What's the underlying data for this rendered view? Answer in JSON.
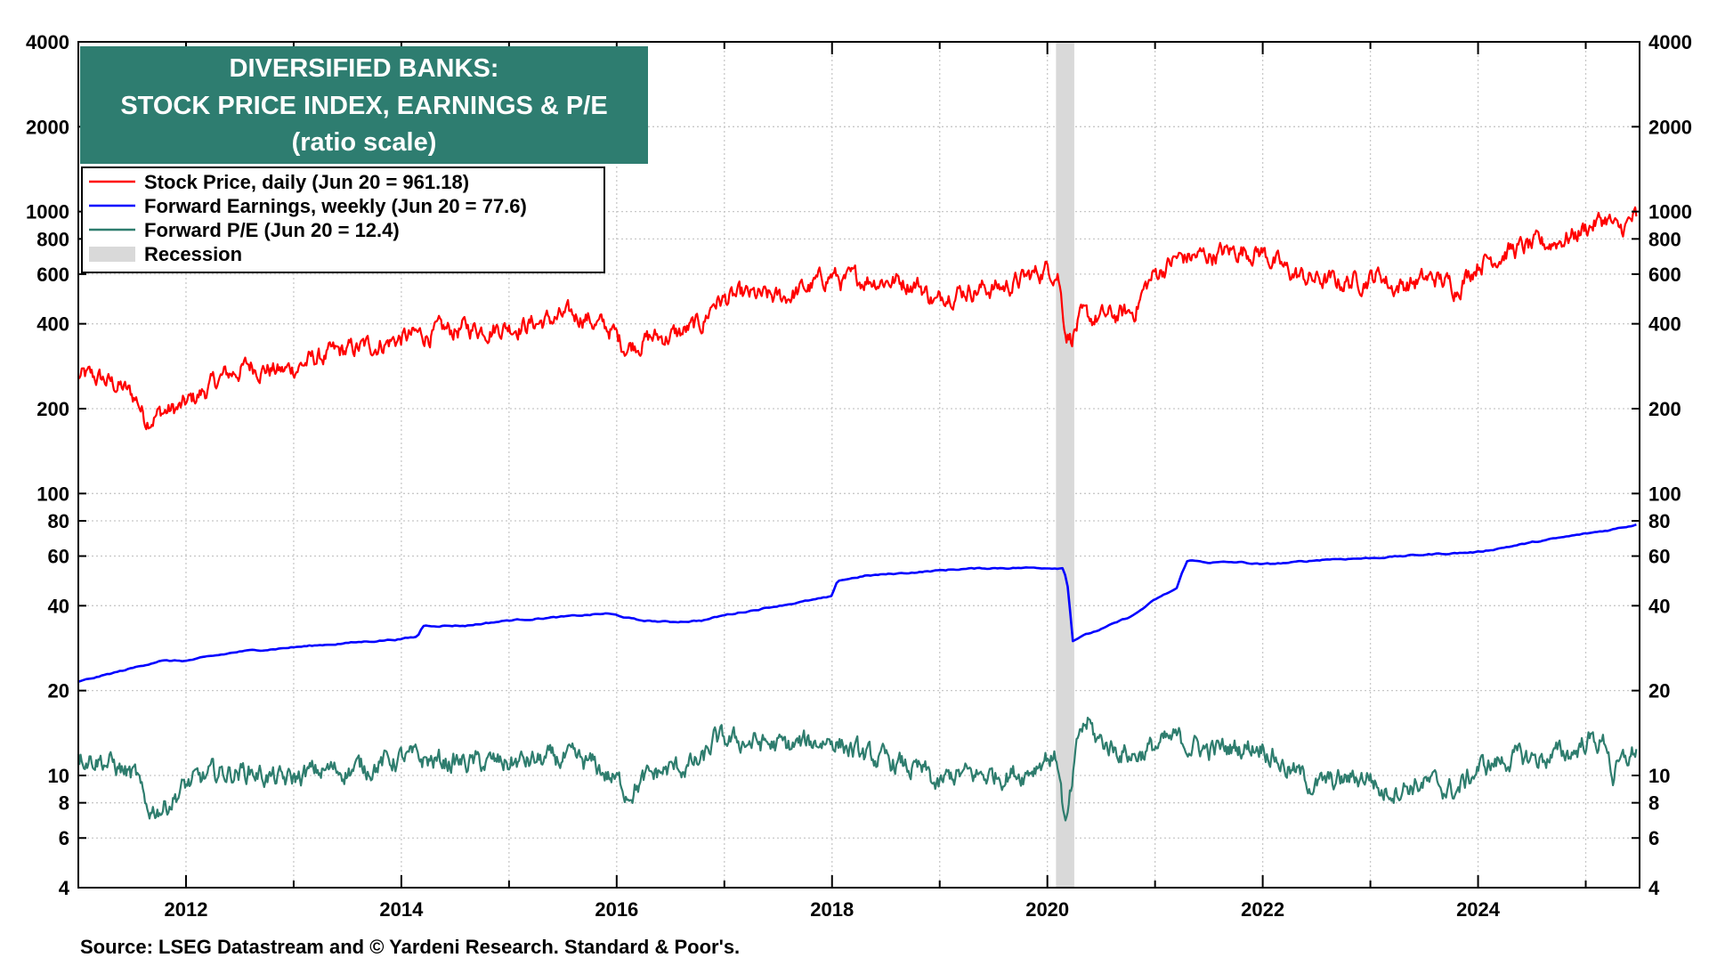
{
  "title_lines": [
    "DIVERSIFIED BANKS:",
    "STOCK PRICE INDEX, EARNINGS & P/E",
    "(ratio scale)"
  ],
  "source": "Source: LSEG Datastream and © Yardeni Research. Standard & Poor's.",
  "colors": {
    "stock": "#ff0000",
    "earnings": "#0000ff",
    "pe": "#2e7d6e",
    "recession": "#d9d9d9",
    "title_bg": "#2e7d70",
    "title_text": "#ffffff",
    "grid": "#c8c8c8"
  },
  "legend": [
    {
      "key": "stock",
      "label": "Stock Price, daily (Jun 20 = 961.18)"
    },
    {
      "key": "earnings",
      "label": "Forward Earnings, weekly (Jun 20 = 77.6)"
    },
    {
      "key": "pe",
      "label": "Forward P/E (Jun 20 = 12.4)"
    },
    {
      "key": "recession",
      "label": "Recession"
    }
  ],
  "chart_data": {
    "type": "line",
    "scale": "log",
    "xlim": [
      2011.0,
      2025.5
    ],
    "ylim": [
      4,
      4000
    ],
    "x_ticks": [
      2012,
      2014,
      2016,
      2018,
      2020,
      2022,
      2024
    ],
    "y_ticks": [
      4,
      6,
      8,
      10,
      20,
      40,
      60,
      80,
      100,
      200,
      400,
      600,
      800,
      1000,
      2000,
      4000
    ],
    "grid": true,
    "legend_position": "top-left",
    "recession": {
      "start": 2020.08,
      "end": 2020.25
    },
    "series": [
      {
        "name": "Stock Price, daily",
        "key": "stock",
        "x": [
          2011.0,
          2011.2,
          2011.4,
          2011.55,
          2011.62,
          2011.7,
          2011.8,
          2011.95,
          2012.2,
          2012.35,
          2012.6,
          2012.9,
          2013.2,
          2013.5,
          2013.8,
          2014.0,
          2014.3,
          2014.6,
          2014.9,
          2015.2,
          2015.5,
          2015.7,
          2015.8,
          2015.95,
          2016.05,
          2016.1,
          2016.3,
          2016.45,
          2016.6,
          2016.8,
          2016.9,
          2017.2,
          2017.5,
          2017.8,
          2018.0,
          2018.1,
          2018.3,
          2018.6,
          2018.8,
          2018.98,
          2019.05,
          2019.3,
          2019.6,
          2019.8,
          2020.0,
          2020.1,
          2020.17,
          2020.22,
          2020.3,
          2020.5,
          2020.7,
          2020.8,
          2020.9,
          2021.0,
          2021.2,
          2021.5,
          2021.8,
          2022.0,
          2022.2,
          2022.4,
          2022.7,
          2022.9,
          2023.1,
          2023.2,
          2023.4,
          2023.6,
          2023.8,
          2024.0,
          2024.3,
          2024.6,
          2024.9,
          2025.0,
          2025.2,
          2025.3,
          2025.47
        ],
        "values": [
          260,
          255,
          238,
          215,
          185,
          190,
          195,
          200,
          235,
          260,
          285,
          270,
          300,
          320,
          340,
          355,
          370,
          385,
          390,
          400,
          420,
          430,
          400,
          380,
          340,
          335,
          355,
          360,
          370,
          400,
          480,
          500,
          490,
          540,
          600,
          560,
          580,
          570,
          555,
          470,
          520,
          530,
          540,
          580,
          630,
          610,
          380,
          360,
          410,
          420,
          430,
          440,
          530,
          600,
          680,
          700,
          730,
          720,
          620,
          580,
          560,
          570,
          600,
          540,
          560,
          580,
          540,
          660,
          730,
          760,
          830,
          880,
          950,
          840,
          961.18
        ]
      },
      {
        "name": "Forward Earnings, weekly",
        "key": "earnings",
        "x": [
          2011.0,
          2011.5,
          2011.75,
          2012.0,
          2012.5,
          2013.0,
          2013.5,
          2014.0,
          2014.15,
          2014.2,
          2014.6,
          2015.0,
          2015.5,
          2015.9,
          2016.0,
          2016.2,
          2016.5,
          2016.8,
          2017.0,
          2017.5,
          2018.0,
          2018.05,
          2018.3,
          2018.6,
          2018.9,
          2019.2,
          2019.6,
          2020.0,
          2020.15,
          2020.2,
          2020.23,
          2020.3,
          2020.5,
          2020.8,
          2021.0,
          2021.2,
          2021.25,
          2021.3,
          2021.5,
          2021.8,
          2022.0,
          2022.3,
          2022.6,
          2023.0,
          2023.3,
          2023.6,
          2024.0,
          2024.3,
          2024.6,
          2024.9,
          2025.2,
          2025.47
        ],
        "values": [
          21.5,
          24,
          25.5,
          25.5,
          27.5,
          28.5,
          29.5,
          30.5,
          31,
          34,
          34,
          35.5,
          36.5,
          37.5,
          37,
          35.5,
          35,
          35.5,
          37,
          40,
          43,
          49,
          51,
          52,
          53,
          54,
          54.5,
          54.5,
          54.5,
          45,
          30,
          31,
          33,
          37,
          42,
          46,
          52,
          58,
          57,
          57,
          56,
          57,
          58.5,
          59,
          60,
          61,
          62,
          65,
          68,
          71,
          74,
          77.6
        ]
      },
      {
        "name": "Forward P/E",
        "key": "pe",
        "x": [
          2011.0,
          2011.2,
          2011.4,
          2011.55,
          2011.62,
          2011.8,
          2012.0,
          2012.3,
          2012.6,
          2012.9,
          2013.2,
          2013.6,
          2014.0,
          2014.4,
          2014.8,
          2015.2,
          2015.5,
          2015.8,
          2016.05,
          2016.1,
          2016.4,
          2016.8,
          2016.9,
          2017.2,
          2017.6,
          2018.0,
          2018.3,
          2018.6,
          2018.9,
          2018.98,
          2019.1,
          2019.4,
          2019.8,
          2020.0,
          2020.1,
          2020.17,
          2020.22,
          2020.3,
          2020.38,
          2020.45,
          2020.6,
          2020.8,
          2021.0,
          2021.2,
          2021.5,
          2021.8,
          2022.0,
          2022.2,
          2022.5,
          2022.8,
          2023.0,
          2023.1,
          2023.2,
          2023.5,
          2023.8,
          2024.0,
          2024.3,
          2024.6,
          2024.9,
          2025.0,
          2025.2,
          2025.25,
          2025.47
        ],
        "values": [
          11.9,
          11.5,
          10.5,
          9.7,
          7.5,
          7.8,
          9.2,
          10.2,
          10.4,
          9.5,
          10.3,
          10.6,
          11.5,
          11.2,
          11,
          11.2,
          11.4,
          10.8,
          9.2,
          8.8,
          10.3,
          11.1,
          13.2,
          13.2,
          12.6,
          13.5,
          11.6,
          11,
          10,
          8.9,
          10,
          10,
          10.3,
          11.8,
          11.3,
          6.3,
          8.5,
          14.2,
          15.5,
          13.5,
          12.6,
          11.8,
          12.6,
          13.4,
          12.3,
          12.6,
          12.9,
          10.8,
          9.2,
          9.7,
          10,
          8.7,
          9.0,
          9.4,
          8.8,
          10.6,
          11.5,
          11.5,
          12.2,
          13.4,
          13,
          10,
          12.4
        ]
      }
    ]
  }
}
